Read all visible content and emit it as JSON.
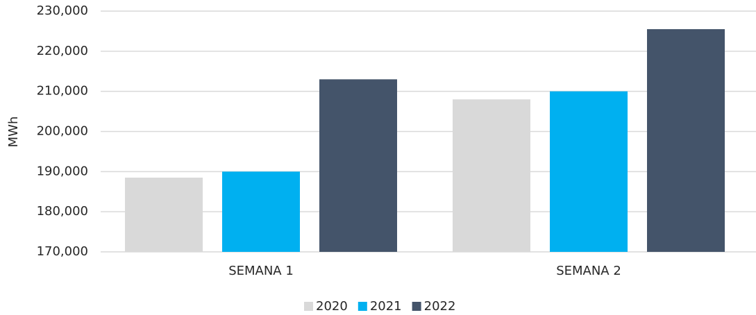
{
  "chart_data": {
    "type": "bar",
    "y_label": "MWh",
    "categories": [
      "SEMANA 1",
      "SEMANA 2"
    ],
    "series": [
      {
        "name": "2020",
        "color": "#d9d9d9",
        "values": [
          188500,
          208000
        ]
      },
      {
        "name": "2021",
        "color": "#00b0f0",
        "values": [
          190000,
          210000
        ]
      },
      {
        "name": "2022",
        "color": "#44546a",
        "values": [
          213000,
          225500
        ]
      }
    ],
    "ylim": [
      170000,
      230000
    ],
    "yticks": [
      {
        "value": 170000,
        "label": "170,000"
      },
      {
        "value": 180000,
        "label": "180,000"
      },
      {
        "value": 190000,
        "label": "190,000"
      },
      {
        "value": 200000,
        "label": "200,000"
      },
      {
        "value": 210000,
        "label": "210,000"
      },
      {
        "value": 220000,
        "label": "220,000"
      },
      {
        "value": 230000,
        "label": "230,000"
      }
    ],
    "grid": true,
    "legend": "bottom"
  }
}
